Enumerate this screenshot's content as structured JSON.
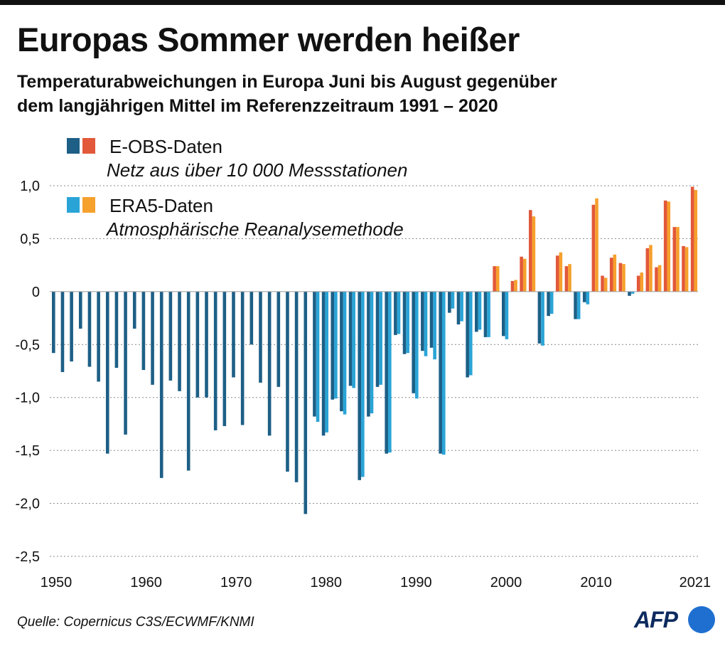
{
  "header": {
    "title": "Europas Sommer werden heißer",
    "subtitle_line1": "Temperaturabweichungen in Europa Juni bis August gegenüber",
    "subtitle_line2": "dem langjährigen Mittel im Referenzzeitraum 1991 – 2020"
  },
  "legend": {
    "eobs_title": "E-OBS-Daten",
    "eobs_desc": "Netz aus über 10 000 Messstationen",
    "era5_title": "ERA5-Daten",
    "era5_desc": "Atmosphärische Reanalysemethode"
  },
  "footer": {
    "source": "Quelle: Copernicus C3S/ECWMF/KNMI",
    "logo": "AFP"
  },
  "colors": {
    "eobs_negative": "#1d5f86",
    "eobs_positive": "#e2583a",
    "era5_negative": "#2aa4d6",
    "era5_positive": "#f6a02d",
    "grid": "#888888"
  },
  "chart_data": {
    "type": "bar",
    "title": "",
    "xlabel": "",
    "ylabel": "",
    "ylim": [
      -2.5,
      1.0
    ],
    "yticks": [
      1.0,
      0.5,
      0,
      -0.5,
      -1.0,
      -1.5,
      -2.0,
      -2.5
    ],
    "ytick_labels": [
      "1,0",
      "0,5",
      "0",
      "-0,5",
      "-1,0",
      "-1,5",
      "-2,0",
      "-2,5"
    ],
    "xticks": [
      1950,
      1960,
      1970,
      1980,
      1990,
      2000,
      2010,
      2021
    ],
    "grid": "horizontal dotted",
    "series": [
      {
        "name": "E-OBS-Daten",
        "start_year": 1950,
        "values": [
          -0.58,
          -0.76,
          -0.66,
          -0.35,
          -0.71,
          -0.85,
          -1.53,
          -0.72,
          -1.35,
          -0.35,
          -0.74,
          -0.88,
          -1.76,
          -0.84,
          -0.94,
          -1.69,
          -1.0,
          -1.0,
          -1.31,
          -1.27,
          -0.81,
          -1.26,
          -0.5,
          -0.86,
          -1.36,
          -0.9,
          -1.7,
          -1.8,
          -2.1,
          -1.18,
          -1.36,
          -1.02,
          -1.13,
          -0.89,
          -1.78,
          -1.18,
          -0.9,
          -1.53,
          -0.41,
          -0.59,
          -0.96,
          -0.56,
          -0.53,
          -1.53,
          -0.2,
          -0.31,
          -0.81,
          -0.38,
          -0.43,
          0.24,
          -0.42,
          0.1,
          0.33,
          0.77,
          -0.49,
          -0.23,
          0.34,
          0.24,
          -0.26,
          -0.1,
          0.82,
          0.15,
          0.32,
          0.27,
          -0.04,
          0.15,
          0.41,
          0.23,
          0.86,
          0.61,
          0.43,
          0.99
        ]
      },
      {
        "name": "ERA5-Daten",
        "start_year": 1950,
        "values": [
          null,
          null,
          null,
          null,
          null,
          null,
          null,
          null,
          null,
          null,
          null,
          null,
          null,
          null,
          null,
          null,
          null,
          null,
          null,
          null,
          null,
          null,
          null,
          null,
          null,
          null,
          null,
          null,
          null,
          -1.23,
          -1.33,
          -1.01,
          -1.16,
          -0.91,
          -1.75,
          -1.15,
          -0.88,
          -1.52,
          -0.4,
          -0.58,
          -1.01,
          -0.61,
          -0.64,
          -1.54,
          -0.16,
          -0.28,
          -0.79,
          -0.36,
          -0.43,
          0.24,
          -0.45,
          0.11,
          0.31,
          0.71,
          -0.51,
          -0.21,
          0.37,
          0.26,
          -0.26,
          -0.12,
          0.88,
          0.13,
          0.35,
          0.26,
          -0.02,
          0.18,
          0.44,
          0.25,
          0.85,
          0.61,
          0.42,
          0.96
        ]
      }
    ]
  }
}
